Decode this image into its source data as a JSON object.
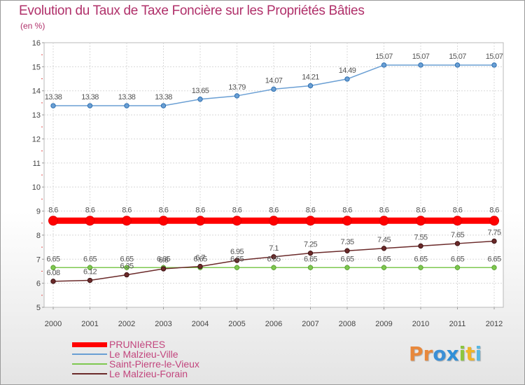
{
  "chart_data": {
    "type": "line",
    "title": "Evolution du Taux de Taxe Foncière sur les Propriétés Bâties",
    "subtitle": "(en %)",
    "categories": [
      "2000",
      "2001",
      "2002",
      "2003",
      "2004",
      "2005",
      "2006",
      "2007",
      "2008",
      "2009",
      "2010",
      "2011",
      "2012"
    ],
    "y_ticks": [
      "5",
      "6",
      "7",
      "8",
      "9",
      "10",
      "11",
      "12",
      "13",
      "14",
      "15",
      "16"
    ],
    "ylim": [
      5,
      16
    ],
    "grid": true,
    "legend_position": "bottom-left",
    "series": [
      {
        "name": "PRUNIèRES",
        "color": "#ff0000",
        "values": [
          8.6,
          8.6,
          8.6,
          8.6,
          8.6,
          8.6,
          8.6,
          8.6,
          8.6,
          8.6,
          8.6,
          8.6,
          8.6
        ],
        "labels": [
          "8.6",
          "8.6",
          "8.6",
          "8.6",
          "8.6",
          "8.6",
          "8.6",
          "8.6",
          "8.6",
          "8.6",
          "8.6",
          "8.6",
          "8.6"
        ]
      },
      {
        "name": "Le Malzieu-Ville",
        "color": "#6a9fd4",
        "values": [
          13.38,
          13.38,
          13.38,
          13.38,
          13.65,
          13.79,
          14.07,
          14.21,
          14.49,
          15.07,
          15.07,
          15.07,
          15.07
        ],
        "labels": [
          "13.38",
          "13.38",
          "13.38",
          "13.38",
          "13.65",
          "13.79",
          "14.07",
          "14.21",
          "14.49",
          "15.07",
          "15.07",
          "15.07",
          "15.07"
        ]
      },
      {
        "name": "Saint-Pierre-le-Vieux",
        "color": "#7ec850",
        "values": [
          6.65,
          6.65,
          6.65,
          6.65,
          6.65,
          6.65,
          6.65,
          6.65,
          6.65,
          6.65,
          6.65,
          6.65,
          6.65
        ],
        "labels": [
          "6.65",
          "6.65",
          "6.65",
          "6.65",
          "6.65",
          "6.65",
          "6.65",
          "6.65",
          "6.65",
          "6.65",
          "6.65",
          "6.65",
          "6.65"
        ]
      },
      {
        "name": "Le Malzieu-Forain",
        "color": "#6b2a2a",
        "values": [
          6.08,
          6.12,
          6.35,
          6.6,
          6.7,
          6.95,
          7.1,
          7.25,
          7.35,
          7.45,
          7.55,
          7.65,
          7.75
        ],
        "labels": [
          "6.08",
          "6.12",
          "6.35",
          "6.6",
          "6.7",
          "6.95",
          "7.1",
          "7.25",
          "7.35",
          "7.45",
          "7.55",
          "7.65",
          "7.75"
        ]
      }
    ]
  },
  "logo": {
    "p1": "Pr",
    "p2": "o",
    "p3": "x",
    "p4": "i",
    "p5": "t",
    "p6": "i"
  }
}
